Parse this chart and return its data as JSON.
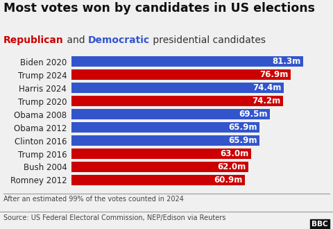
{
  "title": "Most votes won by candidates in US elections",
  "subtitle_parts": [
    {
      "text": "Republican",
      "color": "#cc0000",
      "bold": true
    },
    {
      "text": " and ",
      "color": "#333333",
      "bold": false
    },
    {
      "text": "Democratic",
      "color": "#3355cc",
      "bold": true
    },
    {
      "text": " presidential candidates",
      "color": "#333333",
      "bold": false
    }
  ],
  "candidates": [
    "Biden 2020",
    "Trump 2024",
    "Harris 2024",
    "Trump 2020",
    "Obama 2008",
    "Obama 2012",
    "Clinton 2016",
    "Trump 2016",
    "Bush 2004",
    "Romney 2012"
  ],
  "values": [
    81.3,
    76.9,
    74.4,
    74.2,
    69.5,
    65.9,
    65.9,
    63.0,
    62.0,
    60.9
  ],
  "labels": [
    "81.3m",
    "76.9m",
    "74.4m",
    "74.2m",
    "69.5m",
    "65.9m",
    "65.9m",
    "63.0m",
    "62.0m",
    "60.9m"
  ],
  "colors": [
    "#3355cc",
    "#cc0000",
    "#3355cc",
    "#cc0000",
    "#3355cc",
    "#3355cc",
    "#3355cc",
    "#cc0000",
    "#cc0000",
    "#cc0000"
  ],
  "footnote": "After an estimated 99% of the votes counted in 2024",
  "source": "Source: US Federal Electoral Commission, NEP/Edison via Reuters",
  "background_color": "#f0f0f0",
  "bar_height": 0.78,
  "xlim": [
    0,
    90
  ],
  "title_fontsize": 12.5,
  "subtitle_fontsize": 10,
  "label_fontsize": 8.5,
  "tick_fontsize": 8.5,
  "footnote_fontsize": 7,
  "source_fontsize": 7
}
